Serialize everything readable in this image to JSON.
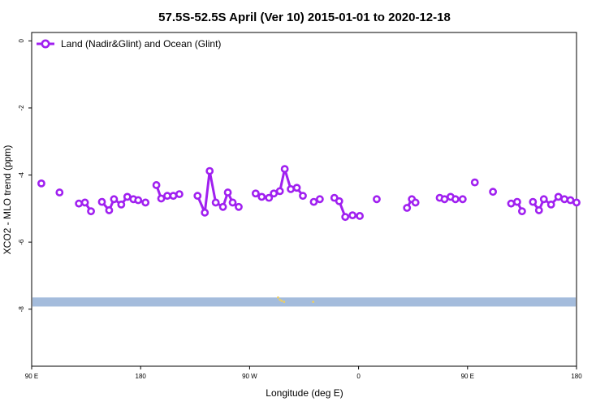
{
  "chart_data": {
    "type": "line",
    "title": "57.5S-52.5S April (Ver 10)   2015-01-01 to 2020-12-18",
    "xlabel": "Longitude (deg E)",
    "ylabel": "XCO2 - MLO trend (ppm)",
    "xlim": [
      90,
      540
    ],
    "ylim": [
      -9.7,
      0.25
    ],
    "x_ticks": [
      {
        "value": 90,
        "label": "90 E"
      },
      {
        "value": 180,
        "label": "180"
      },
      {
        "value": 270,
        "label": "90 W"
      },
      {
        "value": 360,
        "label": "0"
      },
      {
        "value": 450,
        "label": "90 E"
      },
      {
        "value": 540,
        "label": "180"
      }
    ],
    "y_ticks": [
      {
        "value": 0,
        "label": "0"
      },
      {
        "value": -2,
        "label": "-2"
      },
      {
        "value": -4,
        "label": "-4"
      },
      {
        "value": -6,
        "label": "-6"
      },
      {
        "value": -8,
        "label": "-8"
      }
    ],
    "legend": {
      "position": "top-left"
    },
    "colors": {
      "series": "#a020f0",
      "land_strip": "#a4bcdc",
      "land_bits": "#f0d060"
    },
    "series": [
      {
        "name": "Land (Nadir&Glint) and Ocean (Glint)",
        "points": [
          [
            98,
            -4.25
          ],
          null,
          [
            113,
            -4.52
          ],
          null,
          [
            129,
            -4.85
          ],
          [
            134,
            -4.82
          ],
          [
            139,
            -5.08
          ],
          null,
          [
            148,
            -4.8
          ],
          [
            154,
            -5.05
          ],
          [
            158,
            -4.72
          ],
          [
            164,
            -4.88
          ],
          [
            169,
            -4.65
          ],
          [
            174,
            -4.72
          ],
          [
            178,
            -4.75
          ],
          [
            184,
            -4.82
          ],
          null,
          [
            193,
            -4.3
          ],
          [
            197,
            -4.7
          ],
          [
            202,
            -4.62
          ],
          [
            207,
            -4.62
          ],
          [
            212,
            -4.57
          ],
          null,
          [
            227,
            -4.62
          ],
          [
            233,
            -5.12
          ],
          [
            237,
            -3.88
          ],
          [
            242,
            -4.82
          ],
          [
            248,
            -4.95
          ],
          [
            252,
            -4.52
          ],
          [
            256,
            -4.82
          ],
          [
            261,
            -4.95
          ],
          null,
          [
            275,
            -4.55
          ],
          [
            280,
            -4.65
          ],
          [
            286,
            -4.68
          ],
          [
            290,
            -4.55
          ],
          [
            295,
            -4.48
          ],
          [
            299,
            -3.82
          ],
          [
            304,
            -4.42
          ],
          [
            309,
            -4.38
          ],
          [
            314,
            -4.62
          ],
          null,
          [
            323,
            -4.8
          ],
          [
            328,
            -4.72
          ],
          null,
          [
            340,
            -4.68
          ],
          [
            344,
            -4.78
          ],
          [
            349,
            -5.25
          ],
          [
            355,
            -5.2
          ],
          [
            361,
            -5.22
          ],
          null,
          [
            375,
            -4.72
          ],
          null,
          [
            400,
            -4.98
          ],
          [
            404,
            -4.72
          ],
          [
            407,
            -4.82
          ],
          null,
          [
            427,
            -4.68
          ],
          [
            431,
            -4.72
          ],
          [
            436,
            -4.65
          ],
          [
            440,
            -4.72
          ],
          [
            446,
            -4.72
          ],
          null,
          [
            456,
            -4.22
          ],
          null,
          [
            471,
            -4.5
          ],
          null,
          [
            486,
            -4.85
          ],
          [
            491,
            -4.8
          ],
          [
            495,
            -5.08
          ],
          null,
          [
            504,
            -4.8
          ],
          [
            509,
            -5.05
          ],
          [
            513,
            -4.72
          ],
          [
            519,
            -4.88
          ],
          [
            525,
            -4.65
          ],
          [
            530,
            -4.72
          ],
          [
            535,
            -4.75
          ],
          [
            540,
            -4.82
          ]
        ]
      }
    ]
  }
}
